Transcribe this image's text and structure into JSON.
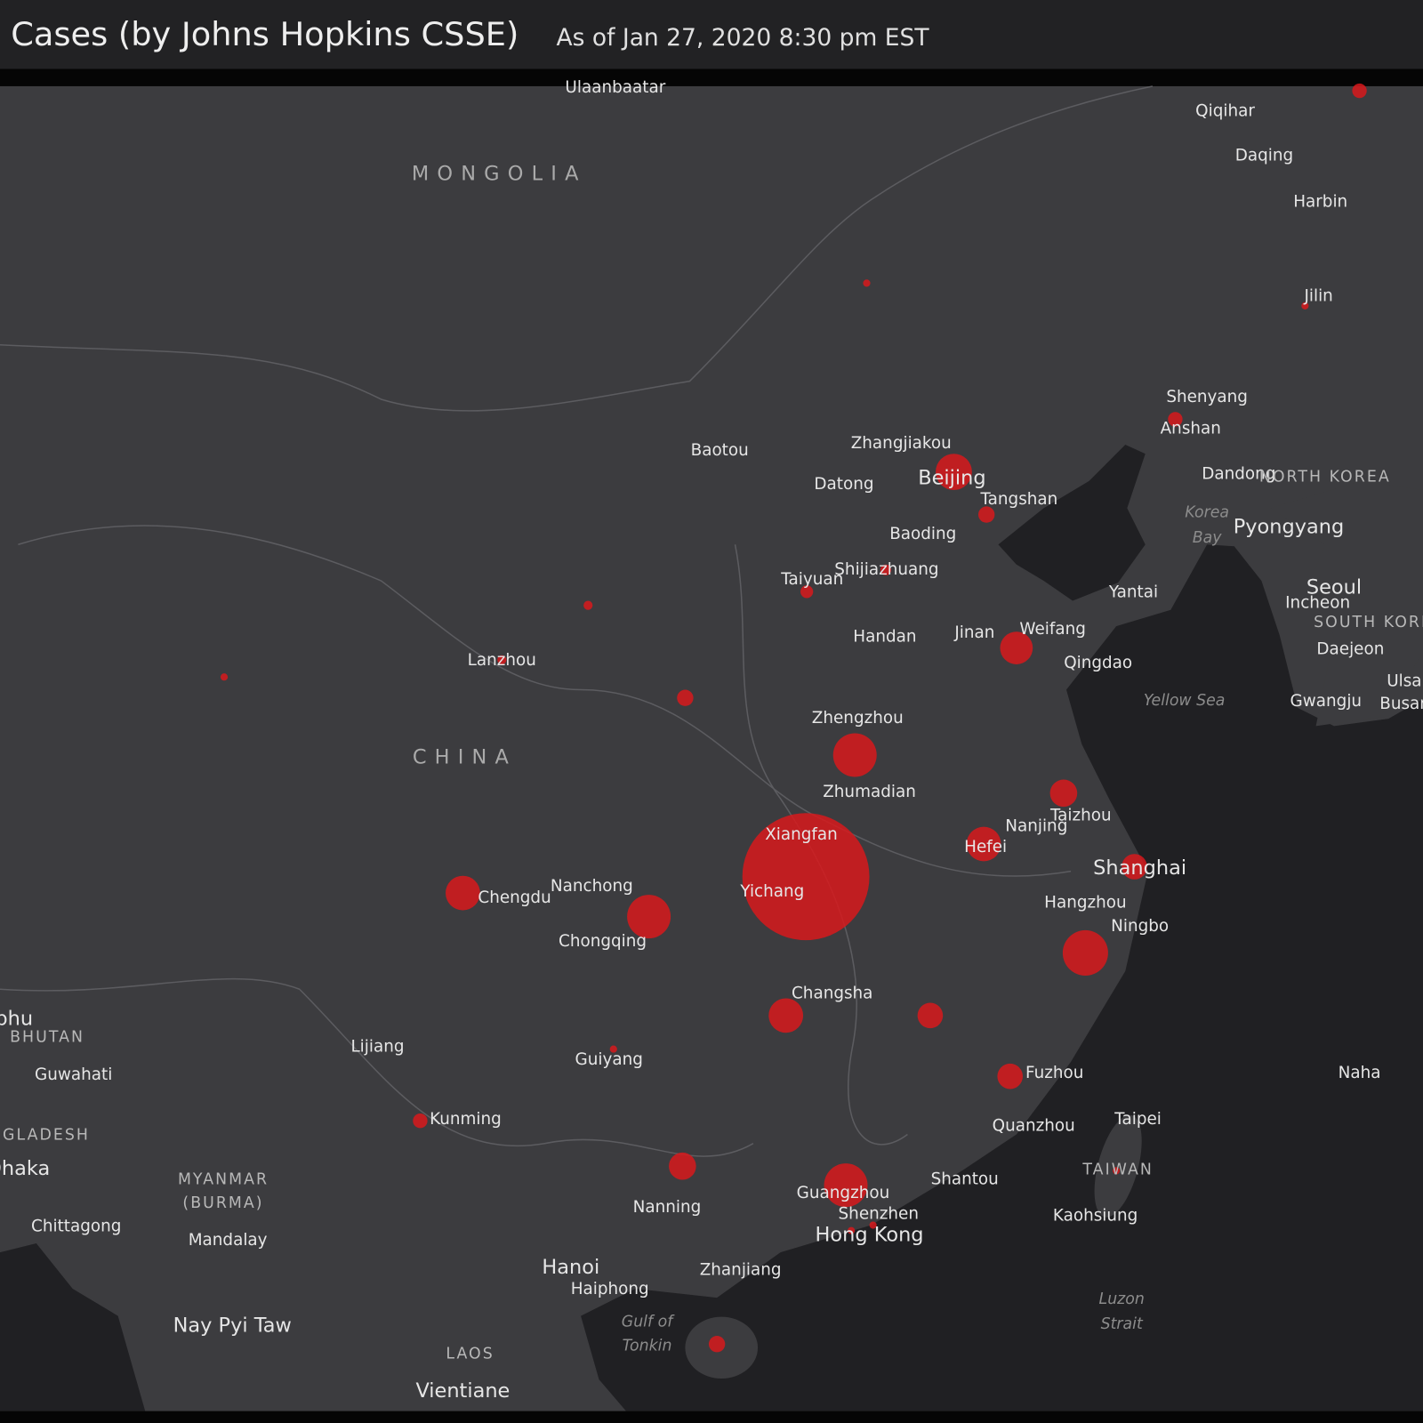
{
  "header": {
    "title": "Cases (by Johns Hopkins CSSE)",
    "subtitle": "As of Jan 27, 2020 8:30 pm EST"
  },
  "map": {
    "labels": [
      "Ulaanbaatar",
      "MONGOLIA",
      "Qiqihar",
      "Daqing",
      "Harbin",
      "Jilin",
      "Shenyang",
      "Anshan",
      "Dandong",
      "NORTH KOREA",
      "Korea",
      "Bay",
      "Pyongyang",
      "Baotou",
      "Zhangjiakou",
      "Beijing",
      "Datong",
      "Tangshan",
      "Baoding",
      "Taiyuan",
      "Shijiazhuang",
      "Yantai",
      "Seoul",
      "Incheon",
      "SOUTH KOREA",
      "Handan",
      "Jinan",
      "Weifang",
      "Qingdao",
      "Daejeon",
      "Lanzhou",
      "Yellow Sea",
      "Gwangju",
      "Ulsan",
      "Busan",
      "Zhengzhou",
      "CHINA",
      "Zhumadian",
      "Taizhou",
      "Nanjing",
      "Xiangfan",
      "Hefei",
      "Shanghai",
      "Chengdu",
      "Nanchong",
      "Yichang",
      "Hangzhou",
      "Ningbo",
      "Chongqing",
      "Changsha",
      "Thimphu",
      "BHUTAN",
      "Lijiang",
      "Guiyang",
      "Guwahati",
      "Fuzhou",
      "Naha",
      "Kunming",
      "Taipei",
      "Quanzhou",
      "BANGLADESH",
      "Dhaka",
      "TAIWAN",
      "MYANMAR",
      "(BURMA)",
      "Shantou",
      "Guangzhou",
      "Nanning",
      "Shenzhen",
      "Kaohsiung",
      "Chittagong",
      "Hong Kong",
      "Mandalay",
      "Hanoi",
      "Zhanjiang",
      "Haiphong",
      "Luzon",
      "Strait",
      "Gulf of",
      "Tonkin",
      "Nay Pyi Taw",
      "LAOS",
      "Vientiane"
    ]
  }
}
